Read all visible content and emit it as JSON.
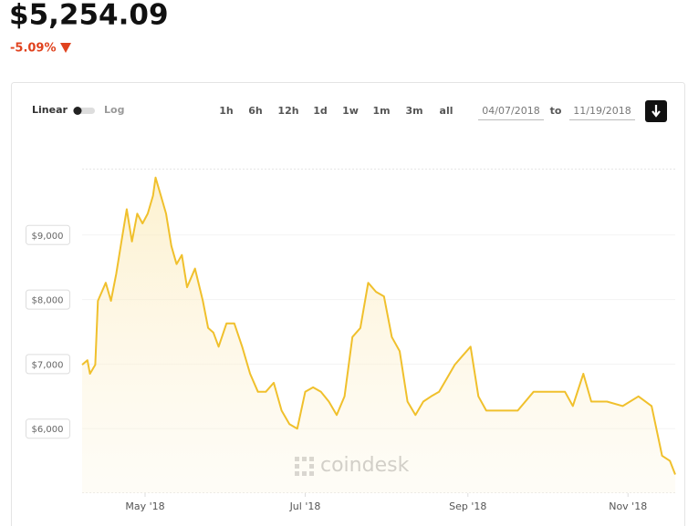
{
  "header": {
    "price": "$5,254.09",
    "change": "-5.09%"
  },
  "controls": {
    "scale_options": [
      "Linear",
      "Log"
    ],
    "ranges": [
      "1h",
      "6h",
      "12h",
      "1d",
      "1w",
      "1m",
      "3m",
      "all"
    ],
    "date_from": "04/07/2018",
    "date_separator": "to",
    "date_to": "11/19/2018"
  },
  "watermark": "coindesk",
  "chart_data": {
    "type": "line",
    "color": "#f0c02c",
    "grid": true,
    "x": [
      "2018-04-07",
      "2018-04-09",
      "2018-04-10",
      "2018-04-12",
      "2018-04-13",
      "2018-04-16",
      "2018-04-18",
      "2018-04-20",
      "2018-04-22",
      "2018-04-24",
      "2018-04-26",
      "2018-04-28",
      "2018-04-30",
      "2018-05-02",
      "2018-05-04",
      "2018-05-05",
      "2018-05-07",
      "2018-05-09",
      "2018-05-11",
      "2018-05-13",
      "2018-05-15",
      "2018-05-17",
      "2018-05-20",
      "2018-05-23",
      "2018-05-25",
      "2018-05-27",
      "2018-05-29",
      "2018-06-01",
      "2018-06-04",
      "2018-06-07",
      "2018-06-10",
      "2018-06-13",
      "2018-06-16",
      "2018-06-19",
      "2018-06-22",
      "2018-06-25",
      "2018-06-28",
      "2018-07-01",
      "2018-07-04",
      "2018-07-07",
      "2018-07-10",
      "2018-07-13",
      "2018-07-16",
      "2018-07-19",
      "2018-07-22",
      "2018-07-25",
      "2018-07-28",
      "2018-07-31",
      "2018-08-03",
      "2018-08-06",
      "2018-08-09",
      "2018-08-12",
      "2018-08-15",
      "2018-08-18",
      "2018-08-21",
      "2018-08-24",
      "2018-08-27",
      "2018-08-30",
      "2018-09-02",
      "2018-09-05",
      "2018-09-08",
      "2018-09-14",
      "2018-09-20",
      "2018-09-26",
      "2018-10-02",
      "2018-10-08",
      "2018-10-11",
      "2018-10-15",
      "2018-10-18",
      "2018-10-24",
      "2018-10-30",
      "2018-11-05",
      "2018-11-10",
      "2018-11-14",
      "2018-11-17",
      "2018-11-19"
    ],
    "values": [
      6990,
      7060,
      6850,
      6990,
      7980,
      8260,
      7980,
      8400,
      8900,
      9400,
      8900,
      9330,
      9180,
      9330,
      9610,
      9890,
      9610,
      9330,
      8830,
      8550,
      8690,
      8190,
      8480,
      7980,
      7560,
      7490,
      7270,
      7630,
      7630,
      7270,
      6850,
      6570,
      6570,
      6710,
      6280,
      6070,
      6000,
      6570,
      6640,
      6570,
      6420,
      6210,
      6500,
      7420,
      7560,
      8260,
      8120,
      8050,
      7420,
      7200,
      6420,
      6210,
      6420,
      6500,
      6570,
      6780,
      6990,
      7130,
      7270,
      6500,
      6280,
      6280,
      6280,
      6570,
      6570,
      6570,
      6350,
      6850,
      6420,
      6420,
      6350,
      6500,
      6350,
      5580,
      5500,
      5290
    ],
    "xlim": [
      "2018-04-07",
      "2018-11-19"
    ],
    "xticks": [
      {
        "value": "2018-05-01",
        "label": "May '18"
      },
      {
        "value": "2018-07-01",
        "label": "Jul '18"
      },
      {
        "value": "2018-09-01",
        "label": "Sep '18"
      },
      {
        "value": "2018-11-01",
        "label": "Nov '18"
      }
    ],
    "ylim": [
      5000,
      10000
    ],
    "yticks": [
      {
        "value": 6000,
        "label": "$6,000"
      },
      {
        "value": 7000,
        "label": "$7,000"
      },
      {
        "value": 8000,
        "label": "$8,000"
      },
      {
        "value": 9000,
        "label": "$9,000"
      }
    ]
  }
}
